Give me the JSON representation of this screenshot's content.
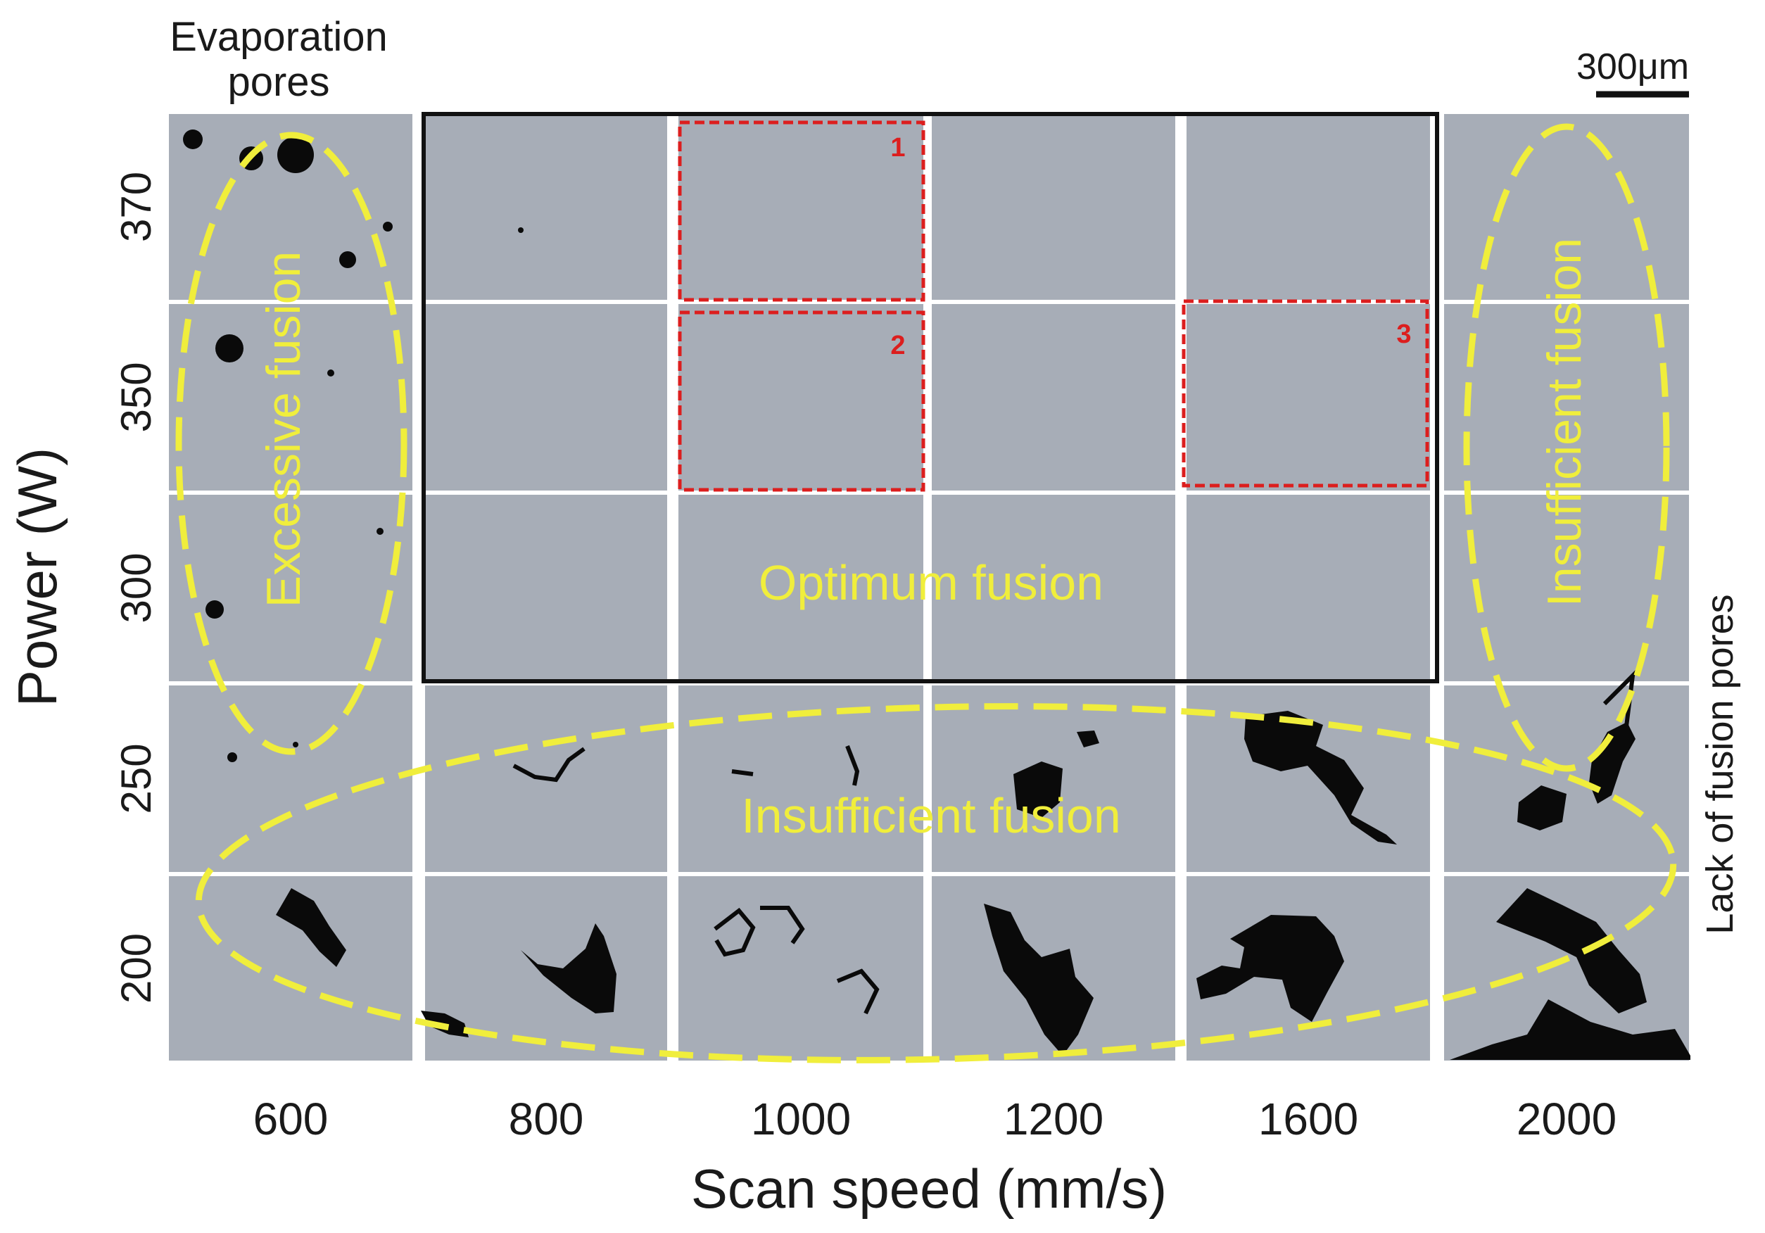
{
  "figure": {
    "title_evaporation_line1": "Evaporation",
    "title_evaporation_line2": "pores",
    "scale_bar_label": "300μm",
    "y_axis_title": "Power (W)",
    "x_axis_title": "Scan speed (mm/s)",
    "right_side_label": "Lack of fusion pores",
    "power_levels": [
      "370",
      "350",
      "300",
      "250",
      "200"
    ],
    "scan_speeds": [
      "600",
      "800",
      "1000",
      "1200",
      "1600",
      "2000"
    ],
    "region_labels": {
      "excessive": "Excessive fusion",
      "optimum": "Optimum fusion",
      "insufficient_bottom": "Insufficient fusion",
      "insufficient_right": "Insufficient fusion"
    },
    "highlight_numbers": [
      "1",
      "2",
      "3"
    ],
    "colors": {
      "panel_gray": "#a7adb7",
      "pore_black": "#0a0a0a",
      "highlight_yellow": "#f0ee3c",
      "highlight_red": "#dc1e1e",
      "optimum_frame": "#111111"
    }
  }
}
